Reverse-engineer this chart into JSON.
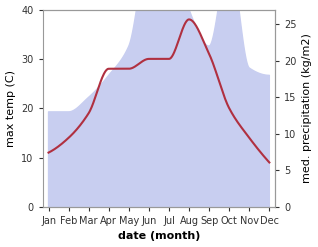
{
  "months": [
    "Jan",
    "Feb",
    "Mar",
    "Apr",
    "May",
    "Jun",
    "Jul",
    "Aug",
    "Sep",
    "Oct",
    "Nov",
    "Dec"
  ],
  "month_indices": [
    0,
    1,
    2,
    3,
    4,
    5,
    6,
    7,
    8,
    9,
    10,
    11
  ],
  "max_temp": [
    11,
    14,
    19,
    28,
    28,
    30,
    30,
    38,
    31,
    20,
    14,
    9
  ],
  "precipitation": [
    13,
    13,
    15,
    18,
    22,
    36,
    39,
    27,
    22,
    34,
    19,
    18
  ],
  "temp_color": "#b03040",
  "precip_fill_color": "#c8cef0",
  "ylim_temp": [
    0,
    40
  ],
  "ylim_precip": [
    0,
    27
  ],
  "xlabel": "date (month)",
  "ylabel_left": "max temp (C)",
  "ylabel_right": "med. precipitation (kg/m2)",
  "bg_color": "#ffffff",
  "label_fontsize": 8,
  "tick_fontsize": 7
}
